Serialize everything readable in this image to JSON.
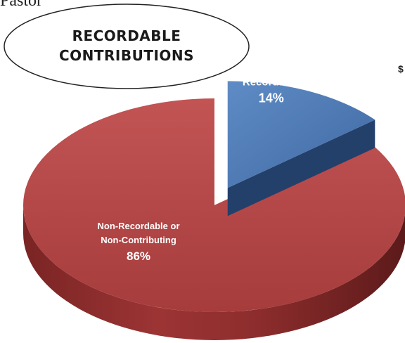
{
  "cropped_text": {
    "top_left": "Pastor",
    "right_edge": "$"
  },
  "chart_data": {
    "type": "pie",
    "title": "RECORDABLE CONTRIBUTIONS",
    "title_lines": [
      "RECORDABLE",
      "CONTRIBUTIONS"
    ],
    "style": "3d-exploded",
    "slices": [
      {
        "label": "Recordable",
        "label_lines": [
          "Recordable"
        ],
        "value": 14,
        "value_label": "14%",
        "color": "#4a76b0",
        "exploded": true
      },
      {
        "label": "Non-Recordable or Non-Contributing",
        "label_lines": [
          "Non-Recordable or",
          "Non-Contributing"
        ],
        "value": 86,
        "value_label": "86%",
        "color": "#b84a4a",
        "exploded": false
      }
    ],
    "legend": "none"
  }
}
